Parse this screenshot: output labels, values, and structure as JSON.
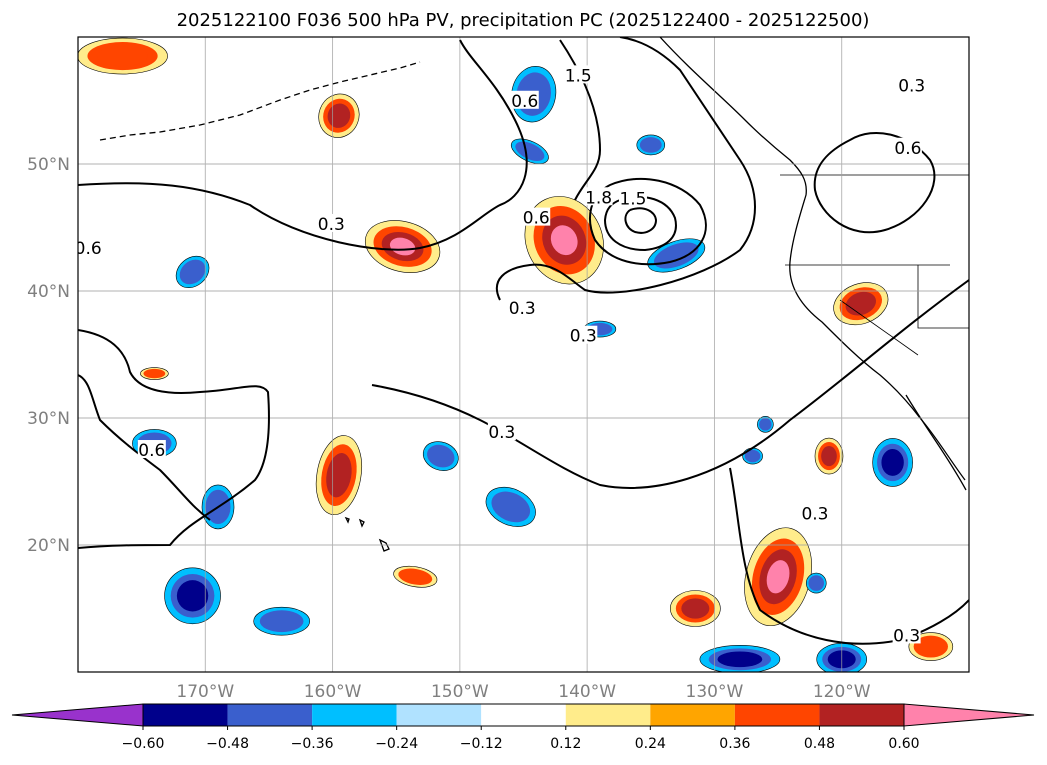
{
  "title": "2025122100 F036 500 hPa PV, precipitation PC (2025122400 - 2025122500)",
  "chart_data": {
    "type": "map",
    "title": "2025122100 F036 500 hPa PV, precipitation PC (2025122400 - 2025122500)",
    "lon_range": [
      -180,
      -110
    ],
    "lat_range": [
      10,
      60
    ],
    "grid": true,
    "lon_ticks": [
      {
        "value": -170,
        "label": "170°W"
      },
      {
        "value": -160,
        "label": "160°W"
      },
      {
        "value": -150,
        "label": "150°W"
      },
      {
        "value": -140,
        "label": "140°W"
      },
      {
        "value": -130,
        "label": "130°W"
      },
      {
        "value": -120,
        "label": "120°W"
      }
    ],
    "lat_ticks": [
      {
        "value": 20,
        "label": "20°N"
      },
      {
        "value": 30,
        "label": "30°N"
      },
      {
        "value": 40,
        "label": "40°N"
      },
      {
        "value": 50,
        "label": "50°N"
      }
    ],
    "colorbar": {
      "extend": "both",
      "boundaries": [
        -0.6,
        -0.48,
        -0.36,
        -0.24,
        -0.12,
        0.12,
        0.24,
        0.36,
        0.48,
        0.6
      ],
      "tick_labels": [
        "−0.60",
        "−0.48",
        "−0.36",
        "−0.24",
        "−0.12",
        "0.12",
        "0.24",
        "0.36",
        "0.48",
        "0.60"
      ],
      "colors": [
        "#9932cc",
        "#00008b",
        "#3a5fcd",
        "#00bfff",
        "#b0e2ff",
        "#ffffff",
        "#ffec8b",
        "#ffa500",
        "#ff4500",
        "#b22222",
        "#ff82ab"
      ]
    },
    "pv_contour_labels": [
      {
        "value": "1.5",
        "lon": -140.7,
        "lat": 56.9
      },
      {
        "value": "0.6",
        "lon": -144.9,
        "lat": 54.9
      },
      {
        "value": "0.3",
        "lon": -114.5,
        "lat": 56.1
      },
      {
        "value": "0.6",
        "lon": -114.8,
        "lat": 51.2
      },
      {
        "value": "1.8",
        "lon": -139.1,
        "lat": 47.3
      },
      {
        "value": "1.5",
        "lon": -136.4,
        "lat": 47.2
      },
      {
        "value": "0.3",
        "lon": -160.1,
        "lat": 45.2
      },
      {
        "value": "0.6",
        "lon": -144.0,
        "lat": 45.7
      },
      {
        "value": "0.6",
        "lon": -179.2,
        "lat": 43.3
      },
      {
        "value": "0.3",
        "lon": -145.1,
        "lat": 38.6
      },
      {
        "value": "0.3",
        "lon": -140.3,
        "lat": 36.4
      },
      {
        "value": "0.3",
        "lon": -146.7,
        "lat": 28.8
      },
      {
        "value": "0.6",
        "lon": -174.2,
        "lat": 27.4
      },
      {
        "value": "0.3",
        "lon": -122.1,
        "lat": 22.4
      },
      {
        "value": "0.3",
        "lon": -114.9,
        "lat": 12.8
      }
    ]
  }
}
